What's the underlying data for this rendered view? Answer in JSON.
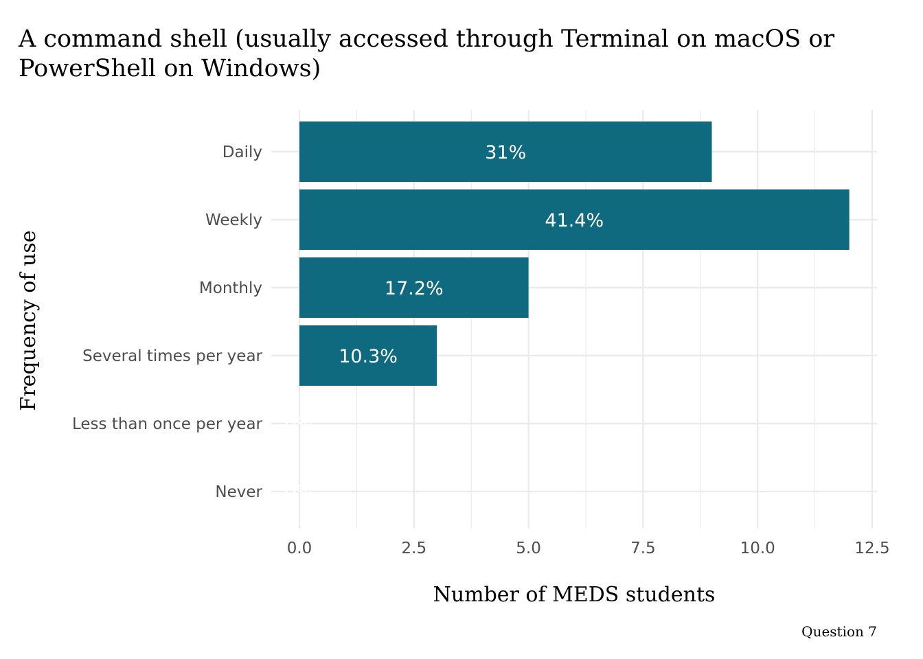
{
  "colors": {
    "bar": "#106a7f",
    "grid": "#ebebeb",
    "tick_text": "#4d4d4d",
    "bar_label": "#ffffff"
  },
  "chart_data": {
    "type": "bar",
    "orientation": "horizontal",
    "title_lines": [
      "A command shell (usually accessed through Terminal on macOS or",
      "PowerShell on Windows)"
    ],
    "xlabel": "Number of MEDS students",
    "ylabel": "Frequency of use",
    "caption": "Question 7",
    "categories": [
      "Daily",
      "Weekly",
      "Monthly",
      "Several times per year",
      "Less than once per year",
      "Never"
    ],
    "values": [
      9,
      12,
      5,
      3,
      0,
      0
    ],
    "percent_labels": [
      "31%",
      "41.4%",
      "17.2%",
      "10.3%",
      "0%",
      "0%"
    ],
    "xlim": [
      0,
      12.5
    ],
    "xticks": [
      "0.0",
      "2.5",
      "5.0",
      "7.5",
      "10.0",
      "12.5"
    ],
    "xtick_values": [
      0,
      2.5,
      5,
      7.5,
      10,
      12.5
    ],
    "grid": true,
    "legend": "none"
  }
}
